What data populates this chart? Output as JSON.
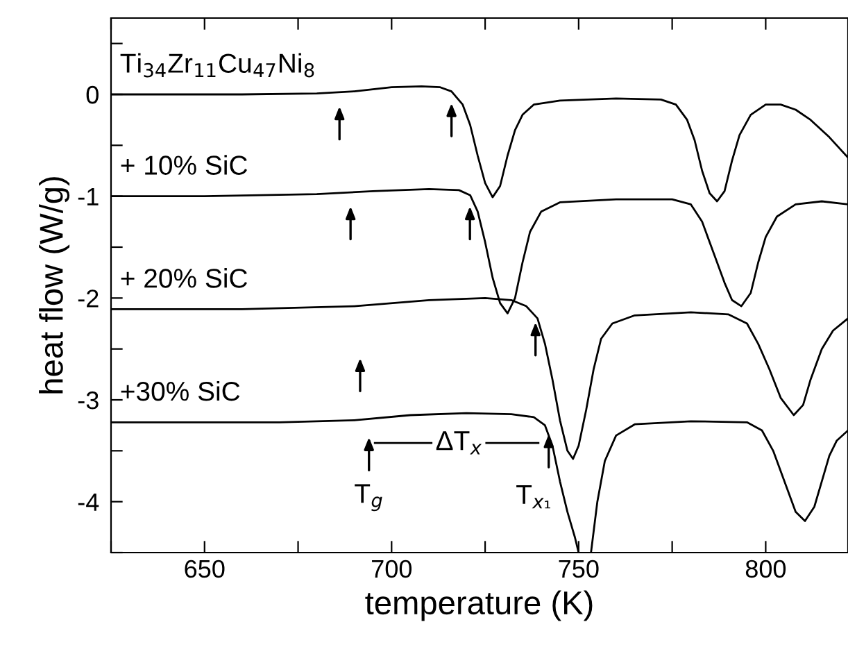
{
  "chart_data": {
    "type": "line",
    "xlabel": "temperature (K)",
    "ylabel": "heat flow (W/g)",
    "xlim": [
      625,
      822
    ],
    "ylim": [
      -4.5,
      0.75
    ],
    "xticks": [
      {
        "value": 625,
        "label": null
      },
      650,
      {
        "value": 675,
        "label": null
      },
      700,
      {
        "value": 725,
        "label": null
      },
      750,
      {
        "value": 775,
        "label": null
      },
      800
    ],
    "yticks": [
      {
        "value": -4.5,
        "label": null
      },
      -4,
      {
        "value": -3.5,
        "label": null
      },
      -3,
      {
        "value": -2.5,
        "label": null
      },
      -2,
      {
        "value": -1.5,
        "label": null
      },
      -1,
      {
        "value": -0.5,
        "label": null
      },
      0,
      {
        "value": 0.5,
        "label": null
      }
    ],
    "grid": false,
    "marker": "none",
    "line_style": "solid",
    "series": [
      {
        "name": "Ti$_{34}$Zr$_{11}$Cu$_{47}$Ni$_{8}$",
        "color": "#000000",
        "x": [
          625,
          640,
          660,
          680,
          690,
          700,
          708,
          713,
          716,
          719,
          721,
          723,
          725,
          727,
          729,
          731,
          733,
          735,
          738,
          745,
          760,
          772,
          776,
          779,
          781,
          783,
          785,
          787,
          789,
          791,
          793,
          796,
          800,
          804,
          808,
          812,
          817,
          822
        ],
        "values": [
          0,
          0,
          0,
          0.01,
          0.03,
          0.07,
          0.08,
          0.07,
          0.03,
          -0.1,
          -0.3,
          -0.6,
          -0.87,
          -1.01,
          -0.9,
          -0.6,
          -0.35,
          -0.2,
          -0.1,
          -0.06,
          -0.04,
          -0.05,
          -0.1,
          -0.25,
          -0.45,
          -0.75,
          -0.97,
          -1.05,
          -0.95,
          -0.65,
          -0.4,
          -0.2,
          -0.1,
          -0.1,
          -0.15,
          -0.25,
          -0.42,
          -0.62
        ]
      },
      {
        "name": "+ 10% SiC",
        "color": "#000000",
        "x": [
          625,
          650,
          680,
          695,
          710,
          718,
          721,
          723,
          725,
          727,
          729,
          731,
          733,
          735,
          737,
          740,
          745,
          760,
          775,
          780,
          783,
          786,
          789,
          791,
          793.5,
          796,
          798,
          800,
          803,
          808,
          815,
          822
        ],
        "values": [
          -1,
          -1,
          -0.98,
          -0.95,
          -0.93,
          -0.94,
          -0.99,
          -1.15,
          -1.45,
          -1.8,
          -2.05,
          -2.15,
          -2.0,
          -1.65,
          -1.35,
          -1.15,
          -1.06,
          -1.03,
          -1.03,
          -1.08,
          -1.25,
          -1.55,
          -1.85,
          -2.02,
          -2.08,
          -1.95,
          -1.65,
          -1.4,
          -1.2,
          -1.08,
          -1.05,
          -1.08
        ]
      },
      {
        "name": "+ 20% SiC",
        "color": "#000000",
        "x": [
          625,
          660,
          690,
          710,
          725,
          732,
          736,
          739,
          741,
          743,
          745,
          747,
          748.5,
          750,
          752,
          754,
          756,
          759,
          765,
          780,
          790,
          795,
          798,
          801,
          804,
          807.5,
          810,
          812,
          815,
          818,
          822
        ],
        "values": [
          -2.11,
          -2.11,
          -2.08,
          -2.02,
          -2.0,
          -2.02,
          -2.08,
          -2.2,
          -2.45,
          -2.8,
          -3.2,
          -3.5,
          -3.58,
          -3.45,
          -3.1,
          -2.7,
          -2.4,
          -2.25,
          -2.17,
          -2.14,
          -2.16,
          -2.25,
          -2.45,
          -2.7,
          -2.98,
          -3.15,
          -3.05,
          -2.8,
          -2.5,
          -2.32,
          -2.2
        ]
      },
      {
        "name": "+30% SiC",
        "color": "#000000",
        "x": [
          625,
          670,
          690,
          705,
          720,
          732,
          738,
          741,
          743,
          745,
          747,
          749,
          750,
          751.7,
          753.3,
          755,
          757,
          760,
          765,
          780,
          795,
          799,
          802,
          805,
          808,
          810.5,
          813,
          815,
          817,
          819,
          822
        ],
        "values": [
          -3.22,
          -3.22,
          -3.2,
          -3.15,
          -3.13,
          -3.14,
          -3.17,
          -3.25,
          -3.45,
          -3.8,
          -4.1,
          -4.35,
          -4.5,
          null,
          -4.5,
          -4.0,
          -3.6,
          -3.35,
          -3.24,
          -3.21,
          -3.22,
          -3.3,
          -3.5,
          -3.8,
          -4.1,
          -4.19,
          -4.05,
          -3.8,
          -3.55,
          -3.4,
          -3.3
        ]
      }
    ],
    "annotations": [
      "T$_{g}$",
      {
        "text": "T$_{x₁}$",
        "x": 742,
        "y": -3.3
      },
      "ΔT$_{x}$"
    ]
  }
}
